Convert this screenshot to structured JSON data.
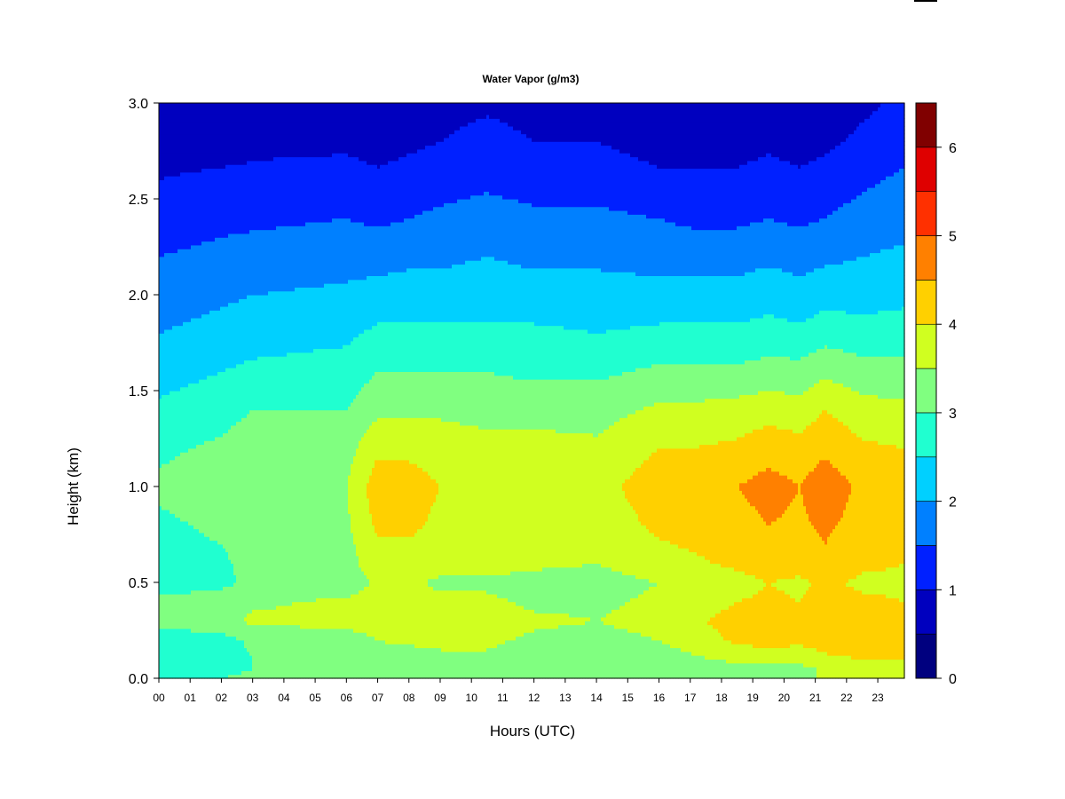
{
  "chart_data": {
    "type": "heatmap",
    "title": "Water Vapor (g/m3)",
    "xlabel": "Hours (UTC)",
    "ylabel": "Height (km)",
    "xlim": [
      0,
      23.85
    ],
    "ylim": [
      0,
      3.0
    ],
    "x_ticks": [
      "00",
      "01",
      "02",
      "03",
      "04",
      "05",
      "06",
      "07",
      "08",
      "09",
      "10",
      "11",
      "12",
      "13",
      "14",
      "15",
      "16",
      "17",
      "18",
      "19",
      "20",
      "21",
      "22",
      "23"
    ],
    "y_ticks": [
      0.0,
      0.5,
      1.0,
      1.5,
      2.0,
      2.5,
      3.0
    ],
    "y_tick_labels": [
      "0.0",
      "0.5",
      "1.0",
      "1.5",
      "2.0",
      "2.5",
      "3.0"
    ],
    "colorbar": {
      "levels": [
        0,
        0.5,
        1,
        1.5,
        2,
        2.5,
        3,
        3.5,
        4,
        4.5,
        5,
        5.5,
        6,
        6.5
      ],
      "colors": [
        "#00007F",
        "#0000BF",
        "#0020FF",
        "#0080FF",
        "#00D0FF",
        "#20FFD0",
        "#80FF80",
        "#D0FF20",
        "#FFD000",
        "#FF8000",
        "#FF3000",
        "#DF0000",
        "#800000"
      ],
      "tick_values": [
        0,
        1,
        2,
        3,
        4,
        5,
        6
      ],
      "tick_labels": [
        "0",
        "1",
        "2",
        "3",
        "4",
        "5",
        "6"
      ]
    },
    "profile_hours": [
      0,
      2,
      3,
      6,
      7,
      8,
      9,
      10.5,
      12,
      14,
      16,
      17,
      18.5,
      19.5,
      20.5,
      21.3,
      22.5,
      23.85
    ],
    "profile_heights_km": [
      0.0,
      0.05,
      0.1,
      0.2,
      0.3,
      0.4,
      0.5,
      0.6,
      0.8,
      1.0,
      1.2,
      1.4,
      1.6,
      1.8,
      2.0,
      2.2,
      2.4,
      2.6,
      2.8,
      3.0
    ],
    "profiles": [
      [
        2.9,
        2.8,
        2.7,
        2.7,
        3.2,
        3.1,
        2.8,
        2.8,
        2.9,
        3.1,
        2.9,
        2.6,
        2.3,
        2.0,
        1.7,
        1.5,
        1.3,
        1.0,
        0.8,
        0.6
      ],
      [
        3.0,
        2.9,
        2.8,
        2.8,
        3.3,
        3.2,
        2.9,
        2.9,
        3.1,
        3.3,
        3.1,
        2.8,
        2.5,
        2.2,
        1.9,
        1.6,
        1.4,
        1.1,
        0.8,
        0.6
      ],
      [
        3.1,
        3.0,
        3.0,
        3.1,
        3.6,
        3.4,
        3.1,
        3.2,
        3.3,
        3.5,
        3.3,
        3.0,
        2.6,
        2.3,
        2.0,
        1.7,
        1.4,
        1.1,
        0.9,
        0.7
      ],
      [
        3.1,
        3.0,
        3.0,
        3.2,
        3.7,
        3.6,
        3.2,
        3.3,
        3.4,
        3.5,
        3.3,
        3.0,
        2.7,
        2.4,
        2.1,
        1.8,
        1.5,
        1.2,
        0.9,
        0.8
      ],
      [
        3.3,
        3.2,
        3.3,
        3.5,
        3.8,
        3.7,
        3.6,
        3.8,
        4.1,
        4.3,
        3.9,
        3.4,
        3.0,
        2.6,
        2.2,
        1.8,
        1.4,
        1.1,
        0.8,
        0.6
      ],
      [
        3.3,
        3.1,
        3.2,
        3.6,
        3.9,
        3.7,
        3.6,
        3.8,
        4.1,
        4.2,
        3.9,
        3.4,
        3.0,
        2.6,
        2.2,
        1.9,
        1.5,
        1.2,
        0.9,
        0.7
      ],
      [
        3.2,
        3.1,
        3.3,
        3.7,
        3.9,
        3.6,
        3.4,
        3.7,
        3.9,
        4.0,
        3.8,
        3.4,
        3.0,
        2.6,
        2.2,
        1.9,
        1.6,
        1.3,
        1.0,
        0.8
      ],
      [
        3.3,
        3.2,
        3.4,
        3.6,
        3.8,
        3.6,
        3.4,
        3.7,
        3.9,
        4.0,
        3.7,
        3.3,
        3.0,
        2.6,
        2.3,
        2.0,
        1.7,
        1.4,
        1.2,
        0.9
      ],
      [
        3.2,
        3.1,
        3.2,
        3.4,
        3.6,
        3.4,
        3.3,
        3.6,
        3.8,
        3.9,
        3.7,
        3.3,
        2.9,
        2.6,
        2.2,
        1.9,
        1.6,
        1.3,
        1.0,
        0.8
      ],
      [
        3.1,
        3.0,
        3.1,
        3.3,
        3.5,
        3.4,
        3.3,
        3.5,
        3.7,
        3.8,
        3.6,
        3.3,
        2.9,
        2.5,
        2.2,
        1.9,
        1.6,
        1.3,
        1.0,
        0.8
      ],
      [
        3.3,
        3.2,
        3.3,
        3.5,
        3.7,
        3.6,
        3.5,
        3.8,
        4.1,
        4.3,
        4.0,
        3.6,
        3.1,
        2.6,
        2.2,
        1.8,
        1.5,
        1.1,
        0.8,
        0.6
      ],
      [
        3.4,
        3.3,
        3.4,
        3.7,
        3.9,
        3.7,
        3.6,
        3.9,
        4.2,
        4.4,
        4.0,
        3.6,
        3.1,
        2.6,
        2.2,
        1.8,
        1.4,
        1.1,
        0.8,
        0.6
      ],
      [
        3.4,
        3.3,
        3.6,
        4.1,
        4.2,
        4.0,
        3.8,
        4.1,
        4.3,
        4.5,
        4.1,
        3.7,
        3.1,
        2.6,
        2.2,
        1.8,
        1.4,
        1.1,
        0.8,
        0.6
      ],
      [
        3.4,
        3.3,
        3.7,
        4.2,
        4.3,
        4.1,
        4.0,
        4.3,
        4.5,
        4.7,
        4.3,
        3.8,
        3.2,
        2.7,
        2.3,
        1.9,
        1.5,
        1.2,
        0.9,
        0.7
      ],
      [
        3.3,
        3.3,
        3.7,
        4.1,
        4.2,
        4.0,
        3.9,
        4.2,
        4.4,
        4.5,
        4.2,
        3.7,
        3.2,
        2.6,
        2.2,
        1.8,
        1.4,
        1.1,
        0.8,
        0.6
      ],
      [
        3.6,
        3.6,
        3.9,
        4.2,
        4.3,
        4.2,
        4.1,
        4.4,
        4.6,
        4.8,
        4.4,
        4.0,
        3.4,
        2.8,
        2.3,
        1.9,
        1.5,
        1.2,
        0.9,
        0.7
      ],
      [
        3.8,
        3.7,
        4.0,
        4.3,
        4.3,
        4.1,
        3.9,
        4.1,
        4.3,
        4.4,
        4.1,
        3.7,
        3.2,
        2.7,
        2.3,
        2.0,
        1.7,
        1.4,
        1.1,
        0.9
      ],
      [
        3.8,
        3.7,
        4.0,
        4.2,
        4.2,
        4.0,
        3.9,
        4.0,
        4.1,
        4.2,
        4.0,
        3.6,
        3.2,
        2.7,
        2.4,
        2.1,
        1.8,
        1.6,
        1.3,
        1.1
      ]
    ]
  }
}
